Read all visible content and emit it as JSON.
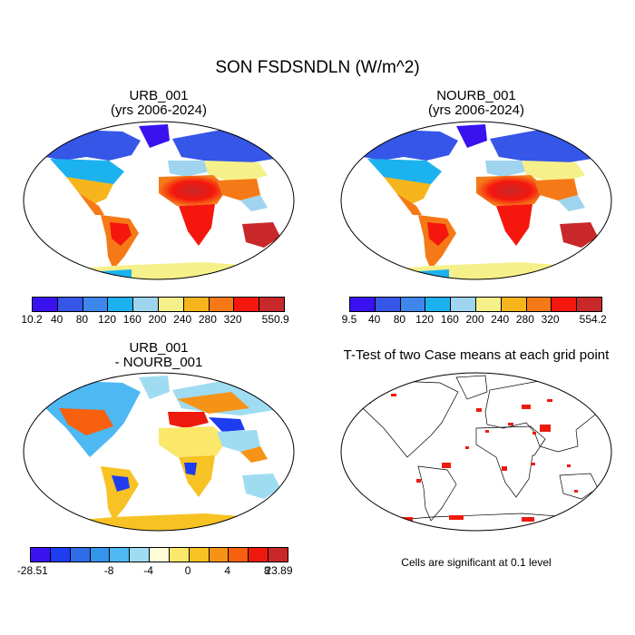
{
  "title": "SON FSDSNDLN (W/m^2)",
  "panels": {
    "urb": {
      "title1": "URB_001",
      "title2": "(yrs 2006-2024)"
    },
    "nourb": {
      "title1": "NOURB_001",
      "title2": "(yrs 2006-2024)"
    },
    "diff": {
      "title1": "URB_001",
      "title2": "- NOURB_001"
    },
    "ttest": {
      "title1": "T-Test of two Case means at each grid point",
      "note": "Cells are significant at 0.1 level"
    }
  },
  "colorbars": {
    "urb": {
      "colors": [
        "#3a12f0",
        "#3556e6",
        "#3f86ec",
        "#1cb2f0",
        "#9fd4ee",
        "#f6f08a",
        "#f6b51c",
        "#f57a17",
        "#f5170e",
        "#c8282a"
      ],
      "ticks": [
        "10.2",
        "40",
        "80",
        "120",
        "160",
        "200",
        "240",
        "280",
        "320",
        "550.9"
      ]
    },
    "nourb": {
      "colors": [
        "#3a12f0",
        "#3556e6",
        "#3f86ec",
        "#1cb2f0",
        "#9fd4ee",
        "#f6f08a",
        "#f6b51c",
        "#f57a17",
        "#f5170e",
        "#c8282a"
      ],
      "ticks": [
        "9.5",
        "40",
        "80",
        "120",
        "160",
        "200",
        "240",
        "280",
        "320",
        "554.2"
      ]
    },
    "diff": {
      "colors": [
        "#3a12f0",
        "#1e3cf0",
        "#2f6ce8",
        "#3594ec",
        "#4eb8f2",
        "#9fdcf2",
        "#fffdd8",
        "#fbe86a",
        "#f7c223",
        "#f69317",
        "#f6600f",
        "#ee1a0d",
        "#c8282a"
      ],
      "ticks": [
        "-28.51",
        "-8",
        "-4",
        "0",
        "4",
        "8",
        "23.89"
      ]
    }
  }
}
